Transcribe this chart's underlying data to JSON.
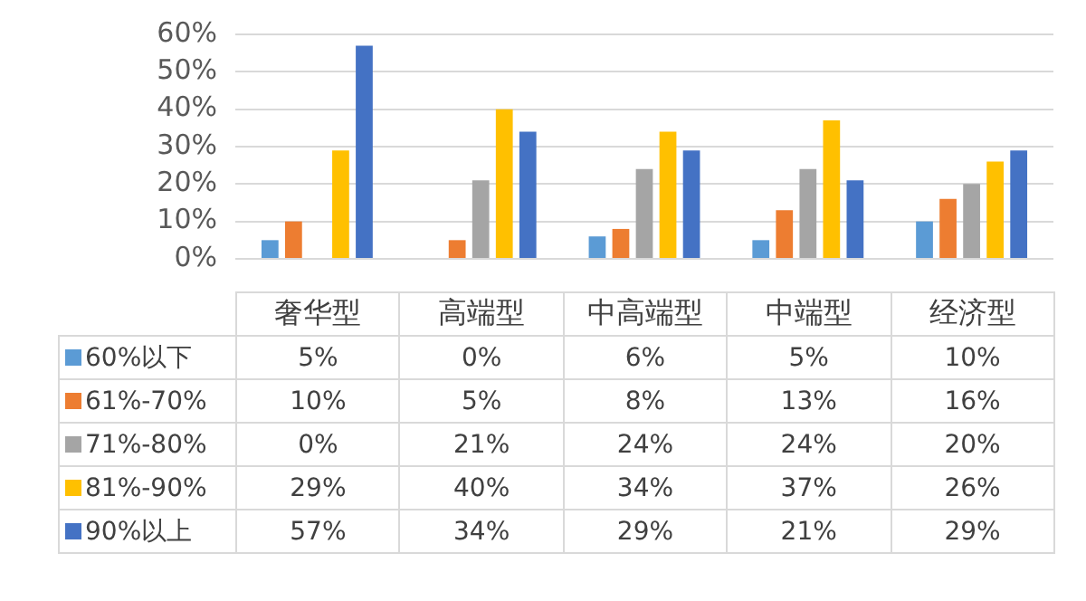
{
  "chart_data": {
    "type": "bar",
    "categories": [
      "奢华型",
      "高端型",
      "中高端型",
      "中端型",
      "经济型"
    ],
    "series": [
      {
        "name": "60%以下",
        "color": "#5b9bd5",
        "values": [
          5,
          0,
          6,
          5,
          10
        ],
        "value_labels": [
          "5%",
          "0%",
          "6%",
          "5%",
          "10%"
        ]
      },
      {
        "name": "61%-70%",
        "color": "#ed7d31",
        "values": [
          10,
          5,
          8,
          13,
          16
        ],
        "value_labels": [
          "10%",
          "5%",
          "8%",
          "13%",
          "16%"
        ]
      },
      {
        "name": "71%-80%",
        "color": "#a5a5a5",
        "values": [
          0,
          21,
          24,
          24,
          20
        ],
        "value_labels": [
          "0%",
          "21%",
          "24%",
          "24%",
          "20%"
        ]
      },
      {
        "name": "81%-90%",
        "color": "#ffc000",
        "values": [
          29,
          40,
          34,
          37,
          26
        ],
        "value_labels": [
          "29%",
          "40%",
          "34%",
          "37%",
          "26%"
        ]
      },
      {
        "name": "90%以上",
        "color": "#4472c4",
        "values": [
          57,
          34,
          29,
          21,
          29
        ],
        "value_labels": [
          "57%",
          "34%",
          "29%",
          "21%",
          "29%"
        ]
      }
    ],
    "ylim": [
      0,
      60
    ],
    "yticks": [
      {
        "value": 0,
        "label": "0%"
      },
      {
        "value": 10,
        "label": "10%"
      },
      {
        "value": 20,
        "label": "20%"
      },
      {
        "value": 30,
        "label": "30%"
      },
      {
        "value": 40,
        "label": "40%"
      },
      {
        "value": 50,
        "label": "50%"
      },
      {
        "value": 60,
        "label": "60%"
      }
    ],
    "grid": "y",
    "legend": "left"
  }
}
